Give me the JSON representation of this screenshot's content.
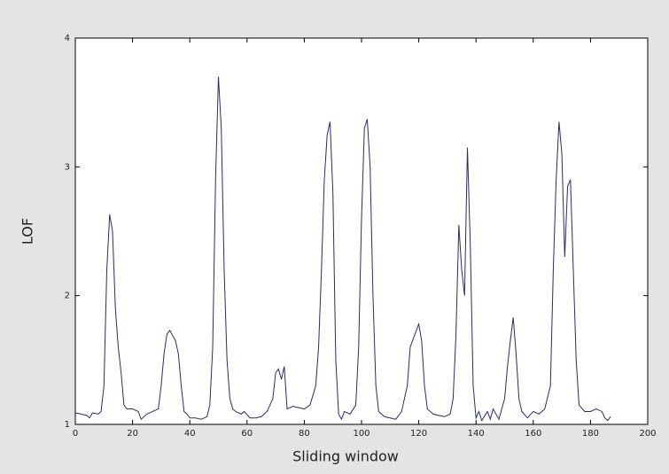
{
  "chart_data": {
    "type": "line",
    "x_label": "Sliding window",
    "y_label": "LOF",
    "x": [
      0,
      2,
      4,
      5,
      6,
      8,
      9,
      10,
      11,
      12,
      13,
      14,
      15,
      16,
      17,
      18,
      20,
      22,
      23,
      25,
      27,
      29,
      30,
      31,
      32,
      33,
      35,
      36,
      37,
      38,
      39,
      40,
      42,
      44,
      46,
      47,
      48,
      49,
      50,
      51,
      52,
      53,
      54,
      55,
      56,
      58,
      59,
      61,
      63,
      65,
      67,
      69,
      70,
      71,
      72,
      73,
      74,
      76,
      78,
      80,
      82,
      84,
      85,
      86,
      87,
      88,
      89,
      90,
      91,
      92,
      93,
      94,
      96,
      98,
      99,
      100,
      101,
      102,
      103,
      104,
      105,
      106,
      108,
      110,
      112,
      114,
      116,
      117,
      119,
      120,
      121,
      122,
      123,
      125,
      127,
      129,
      131,
      132,
      133,
      134,
      135,
      136,
      137,
      138,
      139,
      140,
      141,
      142,
      144,
      145,
      146,
      148,
      150,
      151,
      152,
      153,
      154,
      155,
      156,
      158,
      160,
      162,
      164,
      166,
      167,
      168,
      169,
      170,
      171,
      172,
      173,
      174,
      175,
      176,
      178,
      180,
      182,
      184,
      185,
      186,
      187
    ],
    "series": [
      {
        "color": "#2a2a6e",
        "values": [
          1.09,
          1.08,
          1.07,
          1.05,
          1.09,
          1.08,
          1.1,
          1.3,
          2.2,
          2.63,
          2.5,
          1.9,
          1.6,
          1.4,
          1.15,
          1.12,
          1.12,
          1.1,
          1.04,
          1.08,
          1.1,
          1.12,
          1.3,
          1.55,
          1.7,
          1.73,
          1.65,
          1.55,
          1.3,
          1.1,
          1.08,
          1.05,
          1.05,
          1.04,
          1.06,
          1.15,
          1.6,
          2.9,
          3.7,
          3.3,
          2.2,
          1.5,
          1.2,
          1.12,
          1.1,
          1.08,
          1.1,
          1.05,
          1.05,
          1.06,
          1.1,
          1.2,
          1.4,
          1.43,
          1.35,
          1.45,
          1.12,
          1.14,
          1.13,
          1.12,
          1.15,
          1.3,
          1.6,
          2.2,
          2.9,
          3.25,
          3.35,
          2.8,
          1.5,
          1.08,
          1.04,
          1.1,
          1.08,
          1.15,
          1.6,
          2.6,
          3.3,
          3.37,
          3.0,
          2.0,
          1.3,
          1.1,
          1.06,
          1.05,
          1.04,
          1.1,
          1.3,
          1.6,
          1.72,
          1.78,
          1.65,
          1.3,
          1.12,
          1.08,
          1.07,
          1.06,
          1.08,
          1.2,
          1.7,
          2.55,
          2.2,
          2.0,
          3.15,
          2.4,
          1.3,
          1.05,
          1.1,
          1.03,
          1.1,
          1.04,
          1.12,
          1.04,
          1.2,
          1.45,
          1.65,
          1.83,
          1.55,
          1.2,
          1.1,
          1.05,
          1.1,
          1.08,
          1.12,
          1.3,
          2.2,
          2.9,
          3.35,
          3.1,
          2.3,
          2.85,
          2.9,
          2.2,
          1.5,
          1.15,
          1.1,
          1.1,
          1.12,
          1.1,
          1.05,
          1.03,
          1.06
        ]
      }
    ],
    "xlim": [
      0,
      200
    ],
    "xticks": [
      0,
      20,
      40,
      60,
      80,
      100,
      120,
      140,
      160,
      180,
      200
    ],
    "ylim": [
      1,
      4
    ],
    "yticks": [
      1,
      2,
      3,
      4
    ]
  }
}
